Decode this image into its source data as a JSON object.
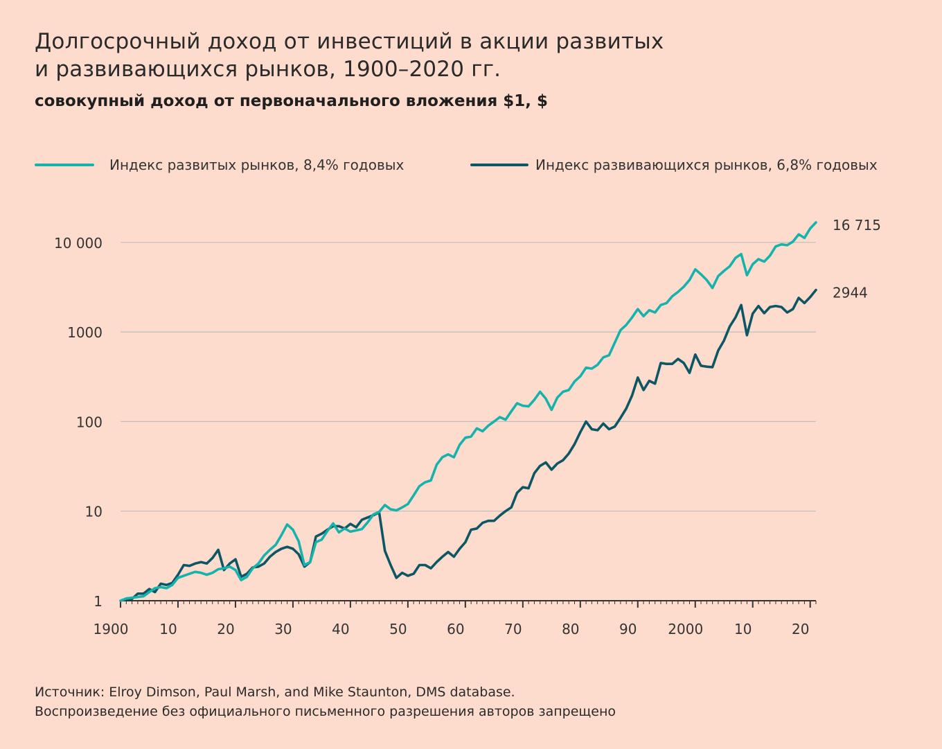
{
  "title_line1": "Долгосрочный доход от инвестиций в акции развитых",
  "title_line2": "и развивающихся рынков, 1900–2020 гг.",
  "subtitle": "совокупный доход от первоначального вложения $1, $",
  "source_line1": "Источник: Elroy Dimson, Paul Marsh, and Mike Staunton, DMS database.",
  "source_line2": "Воспроизведение без официального письменного разрешения авторов запрещено",
  "colors": {
    "developed": "#16b2ac",
    "emerging": "#0d5663",
    "grid": "#bdbdbd",
    "background": "#fddccd"
  },
  "chart_data": {
    "type": "line",
    "yscale": "log",
    "xlim": [
      1900,
      2021
    ],
    "ylim": [
      1,
      16715
    ],
    "grid": "horizontal",
    "legend": "top",
    "x_tick_labels": [
      {
        "x": 1900,
        "label": "1900"
      },
      {
        "x": 1910,
        "label": "10"
      },
      {
        "x": 1920,
        "label": "20"
      },
      {
        "x": 1930,
        "label": "30"
      },
      {
        "x": 1940,
        "label": "40"
      },
      {
        "x": 1950,
        "label": "50"
      },
      {
        "x": 1960,
        "label": "60"
      },
      {
        "x": 1970,
        "label": "70"
      },
      {
        "x": 1980,
        "label": "80"
      },
      {
        "x": 1990,
        "label": "90"
      },
      {
        "x": 2000,
        "label": "2000"
      },
      {
        "x": 2010,
        "label": "10"
      },
      {
        "x": 2020,
        "label": "20"
      }
    ],
    "y_tick_labels": [
      {
        "y": 1,
        "label": "1"
      },
      {
        "y": 10,
        "label": "10"
      },
      {
        "y": 100,
        "label": "100"
      },
      {
        "y": 1000,
        "label": "1000"
      },
      {
        "y": 10000,
        "label": "10 000"
      }
    ],
    "end_labels": [
      "16 715",
      "2944"
    ],
    "series": [
      {
        "name": "Индекс развитых рынков, 8,4% годовых",
        "points": [
          [
            1900,
            1
          ],
          [
            1901,
            1.06
          ],
          [
            1902,
            1.08
          ],
          [
            1903,
            1.1
          ],
          [
            1904,
            1.12
          ],
          [
            1905,
            1.25
          ],
          [
            1906,
            1.38
          ],
          [
            1907,
            1.42
          ],
          [
            1908,
            1.38
          ],
          [
            1909,
            1.5
          ],
          [
            1910,
            1.8
          ],
          [
            1911,
            1.9
          ],
          [
            1912,
            2
          ],
          [
            1913,
            2.1
          ],
          [
            1914,
            2.05
          ],
          [
            1915,
            1.95
          ],
          [
            1916,
            2.05
          ],
          [
            1917,
            2.25
          ],
          [
            1918,
            2.3
          ],
          [
            1919,
            2.4
          ],
          [
            1920,
            2.2
          ],
          [
            1921,
            1.7
          ],
          [
            1922,
            1.85
          ],
          [
            1923,
            2.3
          ],
          [
            1924,
            2.6
          ],
          [
            1925,
            3.2
          ],
          [
            1926,
            3.7
          ],
          [
            1927,
            4.2
          ],
          [
            1928,
            5.4
          ],
          [
            1929,
            7.1
          ],
          [
            1930,
            6.2
          ],
          [
            1931,
            4.6
          ],
          [
            1932,
            2.5
          ],
          [
            1933,
            2.7
          ],
          [
            1934,
            4.5
          ],
          [
            1935,
            4.8
          ],
          [
            1936,
            6.0
          ],
          [
            1937,
            7.3
          ],
          [
            1938,
            5.8
          ],
          [
            1939,
            6.4
          ],
          [
            1940,
            5.9
          ],
          [
            1941,
            6.1
          ],
          [
            1942,
            6.3
          ],
          [
            1943,
            7.5
          ],
          [
            1944,
            9.2
          ],
          [
            1945,
            9.8
          ],
          [
            1946,
            11.7
          ],
          [
            1947,
            10.5
          ],
          [
            1948,
            10.2
          ],
          [
            1949,
            11
          ],
          [
            1950,
            12
          ],
          [
            1951,
            15
          ],
          [
            1952,
            19
          ],
          [
            1953,
            21
          ],
          [
            1954,
            22
          ],
          [
            1955,
            33
          ],
          [
            1956,
            40
          ],
          [
            1957,
            43
          ],
          [
            1958,
            40
          ],
          [
            1959,
            55
          ],
          [
            1960,
            66
          ],
          [
            1961,
            68
          ],
          [
            1962,
            84
          ],
          [
            1963,
            78
          ],
          [
            1964,
            90
          ],
          [
            1965,
            100
          ],
          [
            1966,
            112
          ],
          [
            1967,
            105
          ],
          [
            1968,
            130
          ],
          [
            1969,
            160
          ],
          [
            1970,
            150
          ],
          [
            1971,
            148
          ],
          [
            1972,
            175
          ],
          [
            1973,
            215
          ],
          [
            1974,
            180
          ],
          [
            1975,
            135
          ],
          [
            1976,
            185
          ],
          [
            1977,
            215
          ],
          [
            1978,
            225
          ],
          [
            1979,
            280
          ],
          [
            1980,
            320
          ],
          [
            1981,
            400
          ],
          [
            1982,
            390
          ],
          [
            1983,
            430
          ],
          [
            1984,
            520
          ],
          [
            1985,
            550
          ],
          [
            1986,
            760
          ],
          [
            1987,
            1050
          ],
          [
            1988,
            1200
          ],
          [
            1989,
            1450
          ],
          [
            1990,
            1800
          ],
          [
            1991,
            1500
          ],
          [
            1992,
            1750
          ],
          [
            1993,
            1650
          ],
          [
            1994,
            2000
          ],
          [
            1995,
            2100
          ],
          [
            1996,
            2500
          ],
          [
            1997,
            2800
          ],
          [
            1998,
            3200
          ],
          [
            1999,
            3800
          ],
          [
            2000,
            5000
          ],
          [
            2001,
            4400
          ],
          [
            2002,
            3800
          ],
          [
            2003,
            3100
          ],
          [
            2004,
            4200
          ],
          [
            2005,
            4800
          ],
          [
            2006,
            5400
          ],
          [
            2007,
            6700
          ],
          [
            2008,
            7400
          ],
          [
            2009,
            4300
          ],
          [
            2010,
            5700
          ],
          [
            2011,
            6500
          ],
          [
            2012,
            6100
          ],
          [
            2013,
            7100
          ],
          [
            2014,
            9000
          ],
          [
            2015,
            9500
          ],
          [
            2016,
            9300
          ],
          [
            2017,
            10200
          ],
          [
            2018,
            12300
          ],
          [
            2019,
            11200
          ],
          [
            2020,
            14300
          ],
          [
            2021,
            16715
          ]
        ]
      },
      {
        "name": "Индекс развивающихся рынков, 6,8% годовых",
        "points": [
          [
            1900,
            1
          ],
          [
            1901,
            1.04
          ],
          [
            1902,
            1.05
          ],
          [
            1903,
            1.2
          ],
          [
            1904,
            1.2
          ],
          [
            1905,
            1.35
          ],
          [
            1906,
            1.25
          ],
          [
            1907,
            1.55
          ],
          [
            1908,
            1.5
          ],
          [
            1909,
            1.58
          ],
          [
            1910,
            1.95
          ],
          [
            1911,
            2.5
          ],
          [
            1912,
            2.45
          ],
          [
            1913,
            2.6
          ],
          [
            1914,
            2.7
          ],
          [
            1915,
            2.6
          ],
          [
            1916,
            3.0
          ],
          [
            1917,
            3.7
          ],
          [
            1918,
            2.2
          ],
          [
            1919,
            2.6
          ],
          [
            1920,
            2.9
          ],
          [
            1921,
            1.85
          ],
          [
            1922,
            2.0
          ],
          [
            1923,
            2.35
          ],
          [
            1924,
            2.4
          ],
          [
            1925,
            2.6
          ],
          [
            1926,
            3.1
          ],
          [
            1927,
            3.5
          ],
          [
            1928,
            3.8
          ],
          [
            1929,
            4.0
          ],
          [
            1930,
            3.8
          ],
          [
            1931,
            3.3
          ],
          [
            1932,
            2.4
          ],
          [
            1933,
            2.7
          ],
          [
            1934,
            5.2
          ],
          [
            1935,
            5.6
          ],
          [
            1936,
            6.2
          ],
          [
            1937,
            6.8
          ],
          [
            1938,
            6.8
          ],
          [
            1939,
            6.4
          ],
          [
            1940,
            7.2
          ],
          [
            1941,
            6.6
          ],
          [
            1942,
            8.0
          ],
          [
            1943,
            8.5
          ],
          [
            1944,
            9.0
          ],
          [
            1945,
            9.7
          ],
          [
            1946,
            3.6
          ],
          [
            1947,
            2.5
          ],
          [
            1948,
            1.8
          ],
          [
            1949,
            2.05
          ],
          [
            1950,
            1.9
          ],
          [
            1951,
            2.0
          ],
          [
            1952,
            2.5
          ],
          [
            1953,
            2.5
          ],
          [
            1954,
            2.3
          ],
          [
            1955,
            2.7
          ],
          [
            1956,
            3.1
          ],
          [
            1957,
            3.5
          ],
          [
            1958,
            3.1
          ],
          [
            1959,
            3.8
          ],
          [
            1960,
            4.5
          ],
          [
            1961,
            6.2
          ],
          [
            1962,
            6.4
          ],
          [
            1963,
            7.4
          ],
          [
            1964,
            7.8
          ],
          [
            1965,
            7.8
          ],
          [
            1966,
            8.9
          ],
          [
            1967,
            10
          ],
          [
            1968,
            11
          ],
          [
            1969,
            16
          ],
          [
            1970,
            18.5
          ],
          [
            1971,
            18
          ],
          [
            1972,
            26.5
          ],
          [
            1973,
            32
          ],
          [
            1974,
            35
          ],
          [
            1975,
            29
          ],
          [
            1976,
            34
          ],
          [
            1977,
            37
          ],
          [
            1978,
            44
          ],
          [
            1979,
            56
          ],
          [
            1980,
            76
          ],
          [
            1981,
            100
          ],
          [
            1982,
            82
          ],
          [
            1983,
            80
          ],
          [
            1984,
            95
          ],
          [
            1985,
            82
          ],
          [
            1986,
            88
          ],
          [
            1987,
            110
          ],
          [
            1988,
            140
          ],
          [
            1989,
            195
          ],
          [
            1990,
            310
          ],
          [
            1991,
            225
          ],
          [
            1992,
            285
          ],
          [
            1993,
            265
          ],
          [
            1994,
            450
          ],
          [
            1995,
            440
          ],
          [
            1996,
            440
          ],
          [
            1997,
            500
          ],
          [
            1998,
            450
          ],
          [
            1999,
            350
          ],
          [
            2000,
            560
          ],
          [
            2001,
            420
          ],
          [
            2002,
            410
          ],
          [
            2003,
            405
          ],
          [
            2004,
            620
          ],
          [
            2005,
            800
          ],
          [
            2006,
            1150
          ],
          [
            2007,
            1450
          ],
          [
            2008,
            2000
          ],
          [
            2009,
            920
          ],
          [
            2010,
            1600
          ],
          [
            2011,
            1950
          ],
          [
            2012,
            1620
          ],
          [
            2013,
            1900
          ],
          [
            2014,
            1950
          ],
          [
            2015,
            1900
          ],
          [
            2016,
            1650
          ],
          [
            2017,
            1800
          ],
          [
            2018,
            2400
          ],
          [
            2019,
            2100
          ],
          [
            2020,
            2450
          ],
          [
            2021,
            2944
          ]
        ]
      }
    ]
  }
}
